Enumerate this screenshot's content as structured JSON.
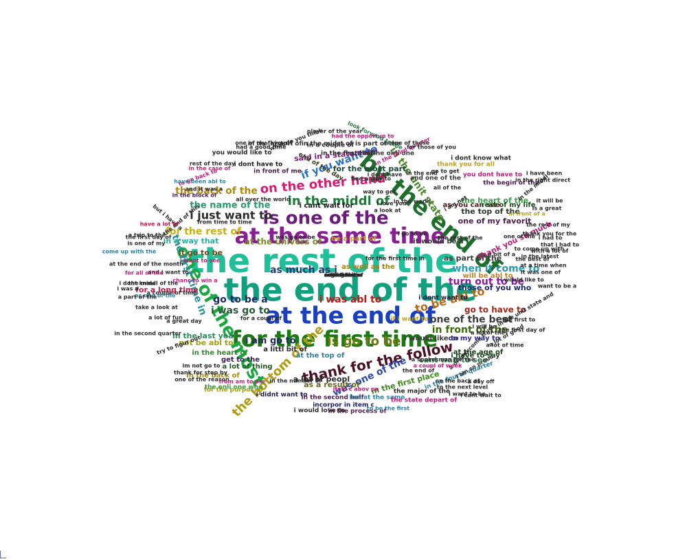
{
  "words": [
    {
      "text": "the rest of the",
      "color": "#1fbf9a"
    },
    {
      "text": "the end of the",
      "color": "#11a07e"
    },
    {
      "text": "at the end of",
      "color": "#1a3fc0"
    },
    {
      "text": "at the same time",
      "color": "#8a1c94"
    },
    {
      "text": "for the first time",
      "color": "#1a7a12"
    },
    {
      "text": "by the end of",
      "color": "#1d6e2d"
    },
    {
      "text": "one of the most",
      "color": "#17a840"
    },
    {
      "text": "is one of the",
      "color": "#6a1c7a"
    },
    {
      "text": "thank for the follow",
      "color": "#4a0f24"
    },
    {
      "text": "in the middl of",
      "color": "#1f7a3a"
    },
    {
      "text": "on the other hand",
      "color": "#d61c72"
    },
    {
      "text": "the bottom of the",
      "color": "#b09a10"
    },
    {
      "text": "i just want to",
      "color": "#2a2a2a"
    },
    {
      "text": "is go to be",
      "color": "#6a7a10"
    },
    {
      "text": "go to be a",
      "color": "#1a2a6a"
    },
    {
      "text": "i was go to",
      "color": "#2a5a3a"
    },
    {
      "text": "the first time in",
      "color": "#2a90a0"
    },
    {
      "text": "to be abl to",
      "color": "#b8681a"
    },
    {
      "text": "if you want to",
      "color": "#2a70c0"
    },
    {
      "text": "for the rest of",
      "color": "#c8b010"
    },
    {
      "text": "the back of the",
      "color": "#b08a10"
    },
    {
      "text": "the name of the",
      "color": "#2a9a6a"
    },
    {
      "text": "when it come to",
      "color": "#2a9ab0"
    },
    {
      "text": "one of the best",
      "color": "#3a3a3a"
    },
    {
      "text": "in front of the",
      "color": "#3a6a0a"
    },
    {
      "text": "was one of the",
      "color": "#2a4ab0"
    },
    {
      "text": "in the unit state",
      "color": "#4a8a2a"
    },
    {
      "text": "turn out to be",
      "color": "#8a1ca0"
    },
    {
      "text": "at the univers of",
      "color": "#7a8a2a"
    },
    {
      "text": "the heart of the",
      "color": "#3aa04a"
    },
    {
      "text": "the top of the",
      "color": "#2a3a2a"
    },
    {
      "text": "one of my favorit",
      "color": "#4a1a4a"
    },
    {
      "text": "as much as i",
      "color": "#1a3a7a"
    },
    {
      "text": "i was abl to",
      "color": "#c01a1a"
    },
    {
      "text": "go to have to",
      "color": "#a02a1a"
    },
    {
      "text": "i am go to",
      "color": "#1a2a5a"
    },
    {
      "text": "not be abl to",
      "color": "#a0a010"
    },
    {
      "text": "in the last year",
      "color": "#2a8a5a"
    },
    {
      "text": "for the most part",
      "color": "#1a4a3a"
    },
    {
      "text": "said in a statement",
      "color": "#7a1a7a"
    },
    {
      "text": "as part of the",
      "color": "#3a3a3a"
    },
    {
      "text": "in a way that",
      "color": "#2ab0a0"
    },
    {
      "text": "it go to be",
      "color": "#6a4a1a"
    },
    {
      "text": "for a long time",
      "color": "#c81a4a"
    },
    {
      "text": "in the first place",
      "color": "#3a8a1a"
    },
    {
      "text": "thank you so much",
      "color": "#c01a7a"
    },
    {
      "text": "as a result of",
      "color": "#6a6a1a"
    },
    {
      "text": "a lot of peopl",
      "color": "#2a2a2a"
    },
    {
      "text": "cant wait to see",
      "color": "#2a7a4a"
    },
    {
      "text": "at the age of",
      "color": "#1a3a1a"
    },
    {
      "text": "those of you who",
      "color": "#1a2a6a"
    },
    {
      "text": "i would like to",
      "color": "#3a3a3a"
    },
    {
      "text": "i have to say",
      "color": "#1a4a1a"
    },
    {
      "text": "on my way to",
      "color": "#2a2a9a"
    },
    {
      "text": "will be abl to",
      "color": "#c0801a"
    },
    {
      "text": "i cant wait for",
      "color": "#1a1a1a"
    },
    {
      "text": "as you can see",
      "color": "#4a1a1a"
    },
    {
      "text": "rest of my life",
      "color": "#1a4a1a"
    },
    {
      "text": "be a part of",
      "color": "#c0a01a"
    },
    {
      "text": "it would be a",
      "color": "#3a3a3a"
    },
    {
      "text": "as well as the",
      "color": "#a0801a"
    },
    {
      "text": "i dont want to",
      "color": "#1a1a4a"
    },
    {
      "text": "if i want to",
      "color": "#c0a01a"
    },
    {
      "text": "in the heart of",
      "color": "#2a8a2a"
    },
    {
      "text": "get to the",
      "color": "#3a1a5a"
    },
    {
      "text": "a lot of thing",
      "color": "#1a5a1a"
    },
    {
      "text": "a littl bit of",
      "color": "#2a2a2a"
    },
    {
      "text": "at the top of",
      "color": "#2a80a0"
    },
    {
      "text": "in the back of",
      "color": "#a08a1a"
    },
    {
      "text": "for the purpos of",
      "color": "#a0a01a"
    },
    {
      "text": "the onli one who",
      "color": "#3a9a3a"
    },
    {
      "text": "i didnt want to",
      "color": "#1a1a4a"
    },
    {
      "text": "in the second half",
      "color": "#4a1a4a"
    },
    {
      "text": "but at the same",
      "color": "#2a80a0"
    },
    {
      "text": "the state depart of",
      "color": "#c01a7a"
    },
    {
      "text": "incorpor in item c",
      "color": "#1a1a6a"
    },
    {
      "text": "i would love to",
      "color": "#2a2a2a"
    },
    {
      "text": "in the process of",
      "color": "#4a1a4a"
    },
    {
      "text": "the major of the",
      "color": "#2a2a2a"
    },
    {
      "text": "in the fourth quarter",
      "color": "#2a80a0"
    },
    {
      "text": "in the first half",
      "color": "#2a2a2a"
    },
    {
      "text": "be the onli one",
      "color": "#3a3a3a"
    },
    {
      "text": "in the histori of",
      "color": "#3a3a3a"
    },
    {
      "text": "in the midst of",
      "color": "#2a2a2a"
    },
    {
      "text": "you would like to",
      "color": "#2a2a2a"
    },
    {
      "text": "i dont have to",
      "color": "#1a1a1a"
    },
    {
      "text": "in front of me",
      "color": "#4a1a4a"
    },
    {
      "text": "in a couple of",
      "color": "#2a2a2a"
    },
    {
      "text": "is part of the",
      "color": "#2a2a2a"
    },
    {
      "text": "end of the day",
      "color": "#3a3a1a"
    },
    {
      "text": "and one of the",
      "color": "#3a3a3a"
    },
    {
      "text": "the begin of the",
      "color": "#4a1a4a"
    },
    {
      "text": "you dont have to",
      "color": "#c01a7a"
    },
    {
      "text": "thank you for all",
      "color": "#c0a01a"
    },
    {
      "text": "i dont know what",
      "color": "#2a2a2a"
    },
    {
      "text": "in the third quarter",
      "color": "#c01a7a"
    },
    {
      "text": "is one of those",
      "color": "#2a2a2a"
    },
    {
      "text": "for those of you",
      "color": "#2a2a2a"
    },
    {
      "text": "had the opportun to",
      "color": "#c01a7a"
    },
    {
      "text": "player of the year",
      "color": "#2a2a2a"
    },
    {
      "text": "look forward to the",
      "color": "#2a7a4a"
    },
    {
      "text": "what do you think",
      "color": "#2a2a2a"
    },
    {
      "text": "one of my favourit",
      "color": "#2a2a2a"
    },
    {
      "text": "had a good time",
      "color": "#2a2a2a"
    },
    {
      "text": "rest of the day",
      "color": "#2a2a2a"
    },
    {
      "text": "in the case of",
      "color": "#c01a7a"
    },
    {
      "text": "to go back to",
      "color": "#c01a7a"
    },
    {
      "text": "have been abl to",
      "color": "#2a80a0"
    },
    {
      "text": "in the block of",
      "color": "#4a1a4a"
    },
    {
      "text": "and it was a",
      "color": "#2a2a2a"
    },
    {
      "text": "all over the world",
      "color": "#2a2a2a"
    },
    {
      "text": "but i have a",
      "color": "#2a2a2a"
    },
    {
      "text": "the end of this",
      "color": "#2a2a2a"
    },
    {
      "text": "have a lot of",
      "color": "#c01a4a"
    },
    {
      "text": "from time to time",
      "color": "#2a2a2a"
    },
    {
      "text": "a trip to the",
      "color": "#2a2a2a"
    },
    {
      "text": "is one of my",
      "color": "#2a2a2a"
    },
    {
      "text": "the first day of",
      "color": "#2a2a2a"
    },
    {
      "text": "at the end of the month",
      "color": "#2a2a2a"
    },
    {
      "text": "the middl of the",
      "color": "#2a2a2a"
    },
    {
      "text": "i want to see",
      "color": "#c01a7a"
    },
    {
      "text": "and i want to",
      "color": "#2a2a2a"
    },
    {
      "text": "chanc to win a",
      "color": "#c01a7a"
    },
    {
      "text": "come up with the",
      "color": "#2a80a0"
    },
    {
      "text": "for all of the",
      "color": "#c01a7a"
    },
    {
      "text": "a couple of time",
      "color": "#2a2a2a"
    },
    {
      "text": "as one of the",
      "color": "#2a80a0"
    },
    {
      "text": "take a look at",
      "color": "#2a2a2a"
    },
    {
      "text": "a lot of fun",
      "color": "#2a2a2a"
    },
    {
      "text": "for a coupl of",
      "color": "#2a2a2a"
    },
    {
      "text": "a great day",
      "color": "#2a2a2a"
    },
    {
      "text": "in the second quarter",
      "color": "#2a2a2a"
    },
    {
      "text": "try to figur out",
      "color": "#2a2a2a"
    },
    {
      "text": "im not go to",
      "color": "#2a2a2a"
    },
    {
      "text": "thank for stop by",
      "color": "#2a2a2a"
    },
    {
      "text": "one of the reason",
      "color": "#2a2a2a"
    },
    {
      "text": "from am to pm",
      "color": "#c01a7a"
    },
    {
      "text": "in the number of",
      "color": "#2a2a2a"
    },
    {
      "text": "item c abov pp",
      "color": "#c01a7a"
    },
    {
      "text": "to be the first",
      "color": "#2a80a0"
    },
    {
      "text": "to the next level",
      "color": "#2a2a2a"
    },
    {
      "text": "i am so proud",
      "color": "#2a2a2a"
    },
    {
      "text": "a lot of time",
      "color": "#2a2a2a"
    },
    {
      "text": "a dream come true",
      "color": "#2a2a2a"
    },
    {
      "text": "in the latest",
      "color": "#2a2a2a"
    },
    {
      "text": "to come up with",
      "color": "#2a2a2a"
    },
    {
      "text": "at a time when",
      "color": "#2a2a2a"
    },
    {
      "text": "it was one of",
      "color": "#2a2a2a"
    },
    {
      "text": "want to be a",
      "color": "#2a2a2a"
    },
    {
      "text": "the rest of my",
      "color": "#2a2a2a"
    },
    {
      "text": "thank you for the",
      "color": "#2a2a2a"
    },
    {
      "text": "that i had to",
      "color": "#2a2a2a"
    },
    {
      "text": "with a lot of",
      "color": "#2a2a2a"
    },
    {
      "text": "in front of a",
      "color": "#c0a01a"
    },
    {
      "text": "i would like to",
      "color": "#2a2a2a"
    },
    {
      "text": "for the first time in",
      "color": "#2a2a2a"
    },
    {
      "text": "was go to be",
      "color": "#2a2a2a"
    },
    {
      "text": "i go to be",
      "color": "#2a2a2a"
    },
    {
      "text": "the rest of the",
      "color": "#2a2a2a"
    },
    {
      "text": "i will be",
      "color": "#2a2a2a"
    },
    {
      "text": "a lot of the",
      "color": "#2a2a2a"
    },
    {
      "text": "a lot of good",
      "color": "#2a2a2a"
    },
    {
      "text": "in the unit state and",
      "color": "#2a2a2a"
    },
    {
      "text": "a coupl of week",
      "color": "#c01a7a"
    },
    {
      "text": "a spokesman for the",
      "color": "#2a2a2a"
    },
    {
      "text": "on the back of",
      "color": "#2a2a2a"
    },
    {
      "text": "i cant wait to",
      "color": "#2a2a2a"
    },
    {
      "text": "the end of",
      "color": "#2a2a2a"
    },
    {
      "text": "the first to",
      "color": "#2a2a2a"
    },
    {
      "text": "the first day of",
      "color": "#2a2a2a"
    },
    {
      "text": "i want to be",
      "color": "#2a2a2a"
    },
    {
      "text": "a day off",
      "color": "#2a2a2a"
    },
    {
      "text": "i was a",
      "color": "#2a2a2a"
    },
    {
      "text": "i dont know",
      "color": "#2a2a2a"
    },
    {
      "text": "a part of the",
      "color": "#2a2a2a"
    },
    {
      "text": "in the right direct",
      "color": "#2a2a2a"
    },
    {
      "text": "in the middl",
      "color": "#2a2a2a"
    },
    {
      "text": "i dont have",
      "color": "#2a2a2a"
    },
    {
      "text": "in the world",
      "color": "#2a2a2a"
    },
    {
      "text": "a look at",
      "color": "#2a2a2a"
    },
    {
      "text": "i love you",
      "color": "#2a2a2a"
    },
    {
      "text": "find a way to",
      "color": "#2a2a2a"
    },
    {
      "text": "way to get",
      "color": "#2a2a2a"
    },
    {
      "text": "a bit of a",
      "color": "#2a2a2a"
    },
    {
      "text": "it will be",
      "color": "#2a2a2a"
    },
    {
      "text": "is a great",
      "color": "#2a2a2a"
    },
    {
      "text": "i am not",
      "color": "#2a2a2a"
    },
    {
      "text": "all of the",
      "color": "#2a2a2a"
    },
    {
      "text": "one of the",
      "color": "#2a2a2a"
    },
    {
      "text": "i had to",
      "color": "#2a2a2a"
    },
    {
      "text": "go to get",
      "color": "#2a2a2a"
    },
    {
      "text": "in the end",
      "color": "#2a2a2a"
    },
    {
      "text": "i have been",
      "color": "#2a2a2a"
    },
    {
      "text": "the best of",
      "color": "#2a2a2a"
    },
    {
      "text": "along with",
      "color": "#2a2a2a"
    },
    {
      "text": "i am sure",
      "color": "#2a2a2a"
    },
    {
      "text": "go to be",
      "color": "#2a2a2a"
    },
    {
      "text": "i think it",
      "color": "#2a2a2a"
    },
    {
      "text": "in the mean",
      "color": "#2a2a2a"
    },
    {
      "text": "one of these",
      "color": "#2a2a2a"
    },
    {
      "text": "a member of",
      "color": "#2a2a2a"
    },
    {
      "text": "in the u",
      "color": "#2a2a2a"
    }
  ]
}
